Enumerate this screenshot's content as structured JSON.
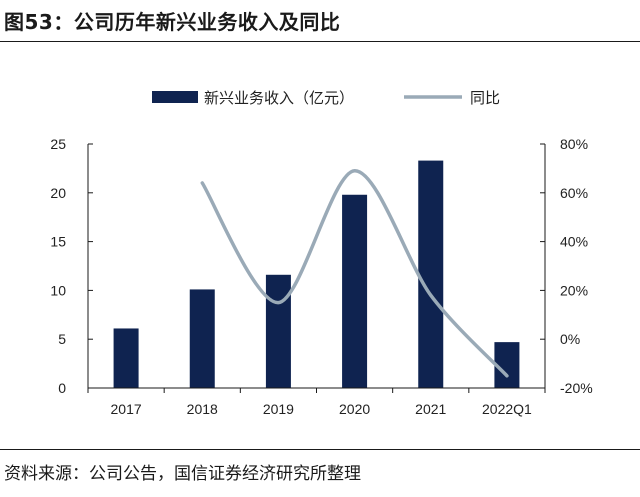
{
  "header": {
    "title": "图53：公司历年新兴业务收入及同比"
  },
  "footer": {
    "source": "资料来源：公司公告，国信证券经济研究所整理"
  },
  "colors": {
    "bar": "#0f2350",
    "line": "#9aaab7",
    "axis": "#1a1a1a",
    "text": "#222222"
  },
  "chart_data": {
    "type": "bar",
    "categories": [
      "2017",
      "2018",
      "2019",
      "2020",
      "2021",
      "2022Q1"
    ],
    "series": [
      {
        "name": "新兴业务收入（亿元）",
        "type": "bar",
        "axis": "left",
        "values": [
          6.1,
          10.1,
          11.6,
          19.8,
          23.3,
          4.7
        ]
      },
      {
        "name": "同比",
        "type": "line",
        "axis": "right",
        "smooth": true,
        "values": [
          null,
          0.64,
          0.15,
          0.69,
          0.18,
          -0.15
        ]
      }
    ],
    "y_left": {
      "min": 0,
      "max": 25,
      "ticks": [
        "0",
        "5",
        "10",
        "15",
        "20",
        "25"
      ],
      "tick_values": [
        0,
        5,
        10,
        15,
        20,
        25
      ]
    },
    "y_right": {
      "min": -0.2,
      "max": 0.8,
      "ticks": [
        "-20%",
        "0%",
        "20%",
        "40%",
        "60%",
        "80%"
      ],
      "tick_values": [
        -0.2,
        0,
        0.2,
        0.4,
        0.6,
        0.8
      ]
    },
    "legend": "top-center",
    "grid": false
  }
}
